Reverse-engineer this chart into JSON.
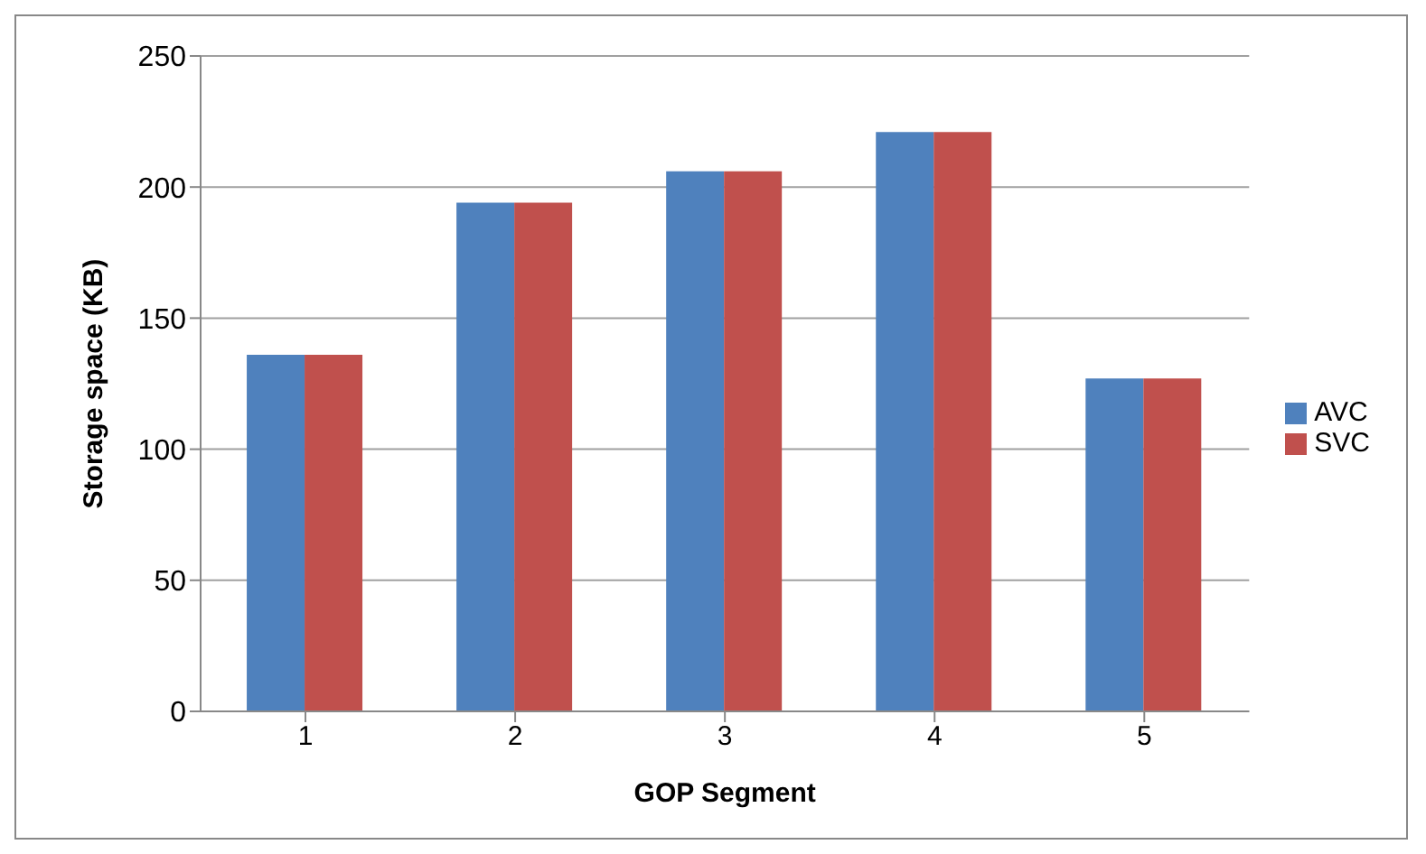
{
  "chart_data": {
    "type": "bar",
    "xlabel": "GOP Segment",
    "ylabel": "Storage space (KB)",
    "categories": [
      "1",
      "2",
      "3",
      "4",
      "5"
    ],
    "series": [
      {
        "name": "AVC",
        "color": "#4f81bd",
        "values": [
          136,
          194,
          206,
          221,
          127
        ]
      },
      {
        "name": "SVC",
        "color": "#c0504d",
        "values": [
          136,
          194,
          206,
          221,
          127
        ]
      }
    ],
    "ylim": [
      0,
      250
    ],
    "yticks": [
      0,
      50,
      100,
      150,
      200,
      250
    ],
    "grid": "y",
    "legend": "right"
  }
}
